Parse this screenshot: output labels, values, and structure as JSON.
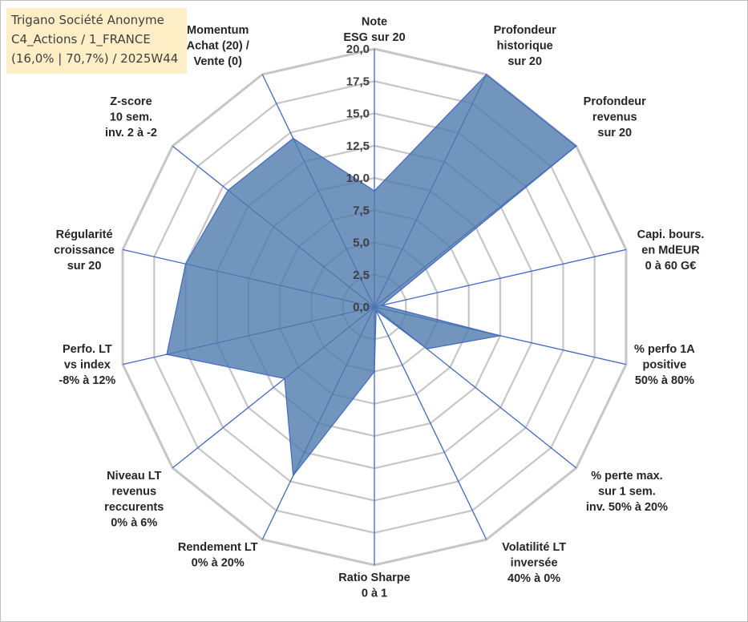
{
  "title_box": {
    "line1": "Trigano Société Anonyme",
    "line2": "C4_Actions / 1_FRANCE",
    "line3": "(16,0% | 70,7%) / 2025W44"
  },
  "colors": {
    "fill": "#4f7aad",
    "stroke": "#3f68c8",
    "grid": "#c6c6c6",
    "spoke": "#3f68c8",
    "title_bg": "#fdeec6"
  },
  "chart_data": {
    "type": "radar",
    "title": "",
    "rmin": 0,
    "rmax": 20,
    "ticks": [
      "0,0",
      "2,5",
      "5,0",
      "7,5",
      "10,0",
      "12,5",
      "15,0",
      "17,5",
      "20,0"
    ],
    "axes": [
      {
        "label": [
          "Note",
          "ESG sur 20"
        ],
        "value": 9.0
      },
      {
        "label": [
          "Profondeur",
          "historique",
          "sur 20"
        ],
        "value": 20.0
      },
      {
        "label": [
          "Profondeur",
          "revenus",
          "sur 20"
        ],
        "value": 20.0
      },
      {
        "label": [
          "Capi. bours.",
          "en MdEUR",
          "0 à 60 G€"
        ],
        "value": 0.6
      },
      {
        "label": [
          "% perfo 1A",
          "positive",
          "50% à 80%"
        ],
        "value": 10.0
      },
      {
        "label": [
          "% perte max.",
          "sur 1 sem.",
          "inv. 50% à 20%"
        ],
        "value": 5.2
      },
      {
        "label": [
          "Volatilité LT",
          "inversée",
          "40% à 0%"
        ],
        "value": 0.3
      },
      {
        "label": [
          "Ratio Sharpe",
          "0 à 1"
        ],
        "value": 5.0
      },
      {
        "label": [
          "Rendement LT",
          "0% à 20%"
        ],
        "value": 14.5
      },
      {
        "label": [
          "Niveau LT",
          "revenus",
          "reccurents",
          "0% à 6%"
        ],
        "value": 8.9
      },
      {
        "label": [
          "Perfo. LT",
          "vs index",
          "-8% à 12%"
        ],
        "value": 16.5
      },
      {
        "label": [
          "Régularité",
          "croissance",
          "sur 20"
        ],
        "value": 15.0
      },
      {
        "label": [
          "Z-score",
          "10 sem.",
          "inv. 2 à -2"
        ],
        "value": 14.5
      },
      {
        "label": [
          "Momentum",
          "Achat (20) /",
          "Vente (0)"
        ],
        "value": 14.5
      }
    ]
  }
}
